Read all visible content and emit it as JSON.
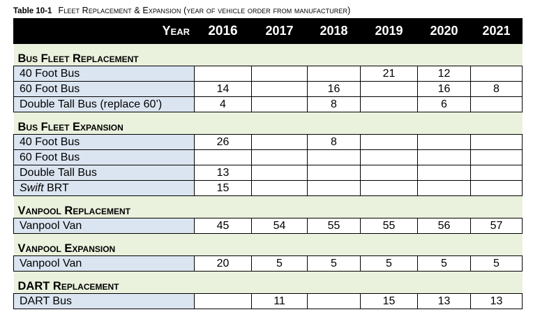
{
  "caption": {
    "number": "Table 10-1",
    "text": "Fleet Replacement & Expansion (year of vehicle order from manufacturer)"
  },
  "header": {
    "year_label": "Year",
    "years": [
      "2016",
      "2017",
      "2018",
      "2019",
      "2020",
      "2021"
    ]
  },
  "sections": [
    {
      "title": "Bus Fleet Replacement",
      "rows": [
        {
          "label": "40 Foot Bus",
          "values": [
            "",
            "",
            "",
            "21",
            "12",
            ""
          ]
        },
        {
          "label": "60 Foot Bus",
          "values": [
            "14",
            "",
            "16",
            "",
            "16",
            "8"
          ]
        },
        {
          "label": "Double Tall Bus (replace 60’)",
          "values": [
            "4",
            "",
            "8",
            "",
            "6",
            ""
          ]
        }
      ]
    },
    {
      "title": "Bus Fleet Expansion",
      "rows": [
        {
          "label": "40 Foot Bus",
          "values": [
            "26",
            "",
            "8",
            "",
            "",
            ""
          ]
        },
        {
          "label": "60 Foot Bus",
          "values": [
            "",
            "",
            "",
            "",
            "",
            ""
          ]
        },
        {
          "label": "Double Tall Bus",
          "values": [
            "13",
            "",
            "",
            "",
            "",
            ""
          ]
        },
        {
          "label_italic": "Swift",
          "label": " BRT",
          "values": [
            "15",
            "",
            "",
            "",
            "",
            ""
          ]
        }
      ]
    },
    {
      "title": "Vanpool Replacement",
      "rows": [
        {
          "label": "Vanpool Van",
          "values": [
            "45",
            "54",
            "55",
            "55",
            "56",
            "57"
          ]
        }
      ]
    },
    {
      "title": "Vanpool Expansion",
      "rows": [
        {
          "label": "Vanpool Van",
          "values": [
            "20",
            "5",
            "5",
            "5",
            "5",
            "5"
          ]
        }
      ]
    },
    {
      "title": "DART Replacement",
      "rows": [
        {
          "label": "DART Bus",
          "values": [
            "",
            "11",
            "",
            "15",
            "13",
            "13"
          ]
        }
      ]
    }
  ]
}
